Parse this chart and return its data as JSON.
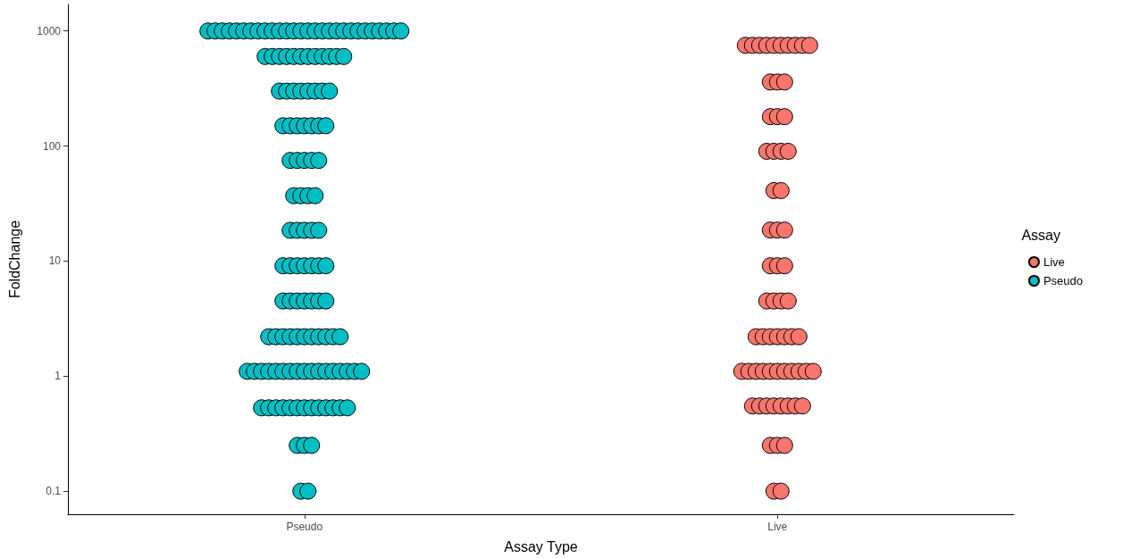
{
  "chart_data": {
    "type": "scatter",
    "xlabel": "Assay Type",
    "ylabel": "FoldChange",
    "legend_title": "Assay",
    "legend": "right",
    "log": "y",
    "marker": "circle",
    "categories": [
      "Pseudo",
      "Live"
    ],
    "ylim": [
      0.063,
      1700
    ],
    "yticks": [
      0.1,
      1,
      10,
      100,
      1000
    ],
    "series": [
      {
        "name": "Live",
        "color": "#f8766d",
        "x": [
          "Live",
          "Live",
          "Live",
          "Live",
          "Live",
          "Live",
          "Live",
          "Live",
          "Live",
          "Live",
          "Live",
          "Live",
          "Live",
          "Live",
          "Live",
          "Live",
          "Live",
          "Live",
          "Live",
          "Live",
          "Live",
          "Live",
          "Live",
          "Live",
          "Live",
          "Live",
          "Live",
          "Live",
          "Live",
          "Live",
          "Live",
          "Live",
          "Live",
          "Live",
          "Live",
          "Live",
          "Live",
          "Live",
          "Live",
          "Live",
          "Live",
          "Live",
          "Live",
          "Live",
          "Live",
          "Live",
          "Live",
          "Live",
          "Live",
          "Live",
          "Live",
          "Live",
          "Live",
          "Live",
          "Live",
          "Live",
          "Live",
          "Live",
          "Live",
          "Live",
          "Live",
          "Live",
          "Live"
        ],
        "values": [
          750,
          750,
          750,
          750,
          750,
          750,
          750,
          750,
          750,
          750,
          360,
          360,
          360,
          180,
          180,
          180,
          90,
          90,
          90,
          90,
          41,
          41,
          18.6,
          18.6,
          18.6,
          9.1,
          9.1,
          9.1,
          4.5,
          4.5,
          4.5,
          4.5,
          2.2,
          2.2,
          2.2,
          2.2,
          2.2,
          2.2,
          2.2,
          1.1,
          1.1,
          1.1,
          1.1,
          1.1,
          1.1,
          1.1,
          1.1,
          1.1,
          1.1,
          1.1,
          0.55,
          0.55,
          0.55,
          0.55,
          0.55,
          0.55,
          0.55,
          0.55,
          0.25,
          0.25,
          0.25,
          0.1,
          0.1
        ]
      },
      {
        "name": "Pseudo",
        "color": "#00bfc4",
        "x": [
          "Pseudo",
          "Pseudo",
          "Pseudo",
          "Pseudo",
          "Pseudo",
          "Pseudo",
          "Pseudo",
          "Pseudo",
          "Pseudo",
          "Pseudo",
          "Pseudo",
          "Pseudo",
          "Pseudo",
          "Pseudo",
          "Pseudo",
          "Pseudo",
          "Pseudo",
          "Pseudo",
          "Pseudo",
          "Pseudo",
          "Pseudo",
          "Pseudo",
          "Pseudo",
          "Pseudo",
          "Pseudo",
          "Pseudo",
          "Pseudo",
          "Pseudo",
          "Pseudo",
          "Pseudo",
          "Pseudo",
          "Pseudo",
          "Pseudo",
          "Pseudo",
          "Pseudo",
          "Pseudo",
          "Pseudo",
          "Pseudo",
          "Pseudo",
          "Pseudo",
          "Pseudo",
          "Pseudo",
          "Pseudo",
          "Pseudo",
          "Pseudo",
          "Pseudo",
          "Pseudo",
          "Pseudo",
          "Pseudo",
          "Pseudo",
          "Pseudo",
          "Pseudo",
          "Pseudo",
          "Pseudo",
          "Pseudo",
          "Pseudo",
          "Pseudo",
          "Pseudo",
          "Pseudo",
          "Pseudo",
          "Pseudo",
          "Pseudo",
          "Pseudo",
          "Pseudo",
          "Pseudo",
          "Pseudo",
          "Pseudo",
          "Pseudo",
          "Pseudo",
          "Pseudo",
          "Pseudo",
          "Pseudo",
          "Pseudo",
          "Pseudo",
          "Pseudo",
          "Pseudo",
          "Pseudo",
          "Pseudo",
          "Pseudo",
          "Pseudo",
          "Pseudo",
          "Pseudo",
          "Pseudo",
          "Pseudo",
          "Pseudo",
          "Pseudo",
          "Pseudo",
          "Pseudo",
          "Pseudo",
          "Pseudo",
          "Pseudo",
          "Pseudo",
          "Pseudo",
          "Pseudo",
          "Pseudo",
          "Pseudo",
          "Pseudo",
          "Pseudo",
          "Pseudo",
          "Pseudo",
          "Pseudo",
          "Pseudo",
          "Pseudo",
          "Pseudo",
          "Pseudo",
          "Pseudo",
          "Pseudo",
          "Pseudo",
          "Pseudo",
          "Pseudo",
          "Pseudo",
          "Pseudo",
          "Pseudo",
          "Pseudo",
          "Pseudo",
          "Pseudo",
          "Pseudo",
          "Pseudo",
          "Pseudo",
          "Pseudo",
          "Pseudo",
          "Pseudo",
          "Pseudo",
          "Pseudo",
          "Pseudo",
          "Pseudo",
          "Pseudo",
          "Pseudo",
          "Pseudo"
        ],
        "values": [
          1000,
          1000,
          1000,
          1000,
          1000,
          1000,
          1000,
          1000,
          1000,
          1000,
          1000,
          1000,
          1000,
          1000,
          1000,
          1000,
          1000,
          1000,
          1000,
          1000,
          1000,
          1000,
          1000,
          1000,
          1000,
          1000,
          1000,
          1000,
          600,
          600,
          600,
          600,
          600,
          600,
          600,
          600,
          600,
          600,
          600,
          600,
          300,
          300,
          300,
          300,
          300,
          300,
          300,
          300,
          150,
          150,
          150,
          150,
          150,
          150,
          150,
          75,
          75,
          75,
          75,
          75,
          37,
          37,
          37,
          37,
          18.5,
          18.5,
          18.5,
          18.5,
          18.5,
          9.1,
          9.1,
          9.1,
          9.1,
          9.1,
          9.1,
          9.1,
          4.5,
          4.5,
          4.5,
          4.5,
          4.5,
          4.5,
          4.5,
          2.2,
          2.2,
          2.2,
          2.2,
          2.2,
          2.2,
          2.2,
          2.2,
          2.2,
          2.2,
          2.2,
          1.1,
          1.1,
          1.1,
          1.1,
          1.1,
          1.1,
          1.1,
          1.1,
          1.1,
          1.1,
          1.1,
          1.1,
          1.1,
          1.1,
          1.1,
          1.1,
          1.1,
          0.53,
          0.53,
          0.53,
          0.53,
          0.53,
          0.53,
          0.53,
          0.53,
          0.53,
          0.53,
          0.53,
          0.53,
          0.53,
          0.25,
          0.25,
          0.25,
          0.1,
          0.1
        ]
      }
    ]
  }
}
